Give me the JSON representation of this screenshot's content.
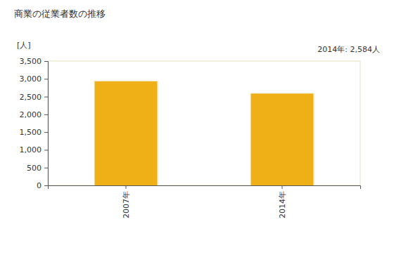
{
  "chart_data": {
    "type": "bar",
    "title": "商業の従業者数の推移",
    "y_label": "[人]",
    "annotation": "2014年: 2,584人",
    "categories": [
      "2007年",
      "2014年"
    ],
    "values": [
      2930,
      2584
    ],
    "color": "#eeaf17",
    "ylim": [
      0,
      3500
    ],
    "yticks": [
      0,
      500,
      {
        "value": 1000,
        "label": "1,000"
      },
      {
        "value": 1500,
        "label": "1,500"
      },
      {
        "value": 2000,
        "label": "2,000"
      },
      {
        "value": 2500,
        "label": "2,500"
      },
      {
        "value": 3000,
        "label": "3,000"
      },
      {
        "value": 3500,
        "label": "3,500"
      }
    ],
    "grid": false
  }
}
